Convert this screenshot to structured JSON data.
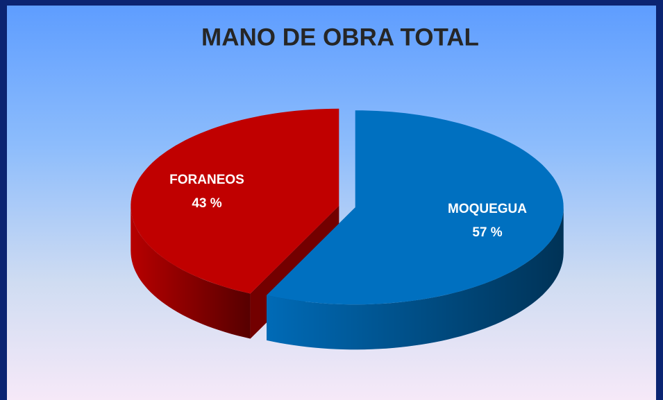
{
  "chart_data": {
    "type": "pie",
    "title": "MANO DE OBRA TOTAL",
    "categories": [
      "MOQUEGUA",
      "FORANEOS"
    ],
    "values": [
      57,
      43
    ],
    "value_labels": [
      "57 %",
      "43 %"
    ],
    "colors": [
      "#0070c0",
      "#c00000"
    ]
  }
}
